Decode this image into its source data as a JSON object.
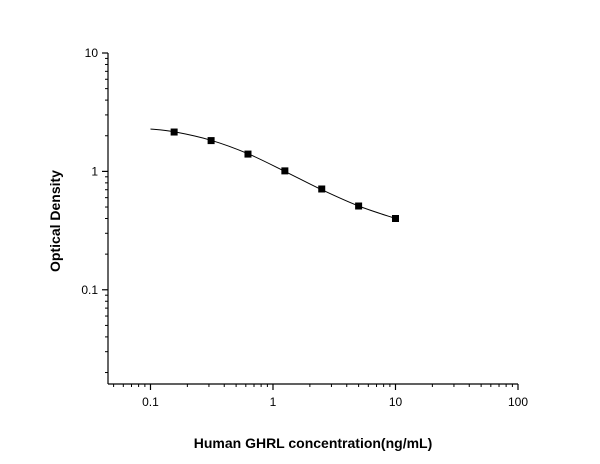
{
  "chart_data": {
    "type": "scatter",
    "x_label": "Human GHRL concentration(ng/mL)",
    "y_label": "Optical Density",
    "x_log": true,
    "y_log": true,
    "xlim": [
      0.045,
      100
    ],
    "ylim": [
      0.016,
      10
    ],
    "xticks": [
      0.1,
      1,
      10,
      100
    ],
    "yticks": [
      0.1,
      1,
      10
    ],
    "xminorticks": [
      0.05,
      0.06,
      0.07,
      0.08,
      0.09,
      0.2,
      0.3,
      0.4,
      0.5,
      0.6,
      0.7,
      0.8,
      0.9,
      2,
      3,
      4,
      5,
      6,
      7,
      8,
      9,
      20,
      30,
      40,
      50,
      60,
      70,
      80,
      90
    ],
    "yminorticks": [
      0.02,
      0.03,
      0.04,
      0.05,
      0.06,
      0.07,
      0.08,
      0.09,
      0.2,
      0.3,
      0.4,
      0.5,
      0.6,
      0.7,
      0.8,
      0.9,
      2,
      3,
      4,
      5,
      6,
      7,
      8,
      9
    ],
    "series": [
      {
        "color": "#000000",
        "x": [
          0.156,
          0.3125,
          0.625,
          1.25,
          2.5,
          5,
          10
        ],
        "values": [
          2.15,
          1.82,
          1.4,
          1.01,
          0.71,
          0.51,
          0.4
        ]
      }
    ],
    "fit_curve": {
      "color": "#000000",
      "x": [
        0.1,
        0.156,
        0.3125,
        0.625,
        1.25,
        2.5,
        5,
        10
      ],
      "values": [
        2.28,
        2.16,
        1.83,
        1.41,
        1.0,
        0.7,
        0.51,
        0.4
      ]
    }
  }
}
